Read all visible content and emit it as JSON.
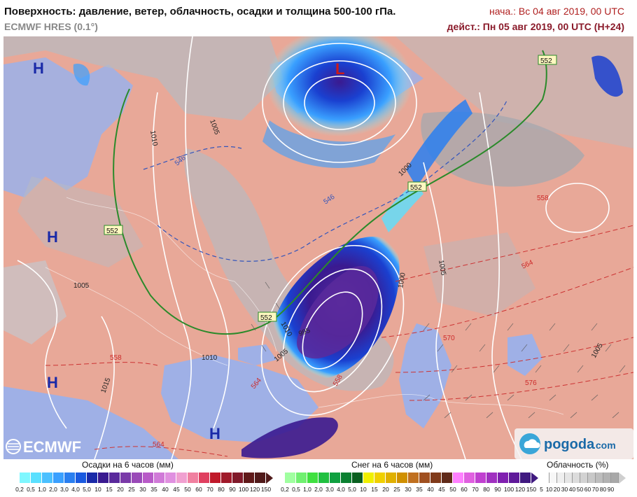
{
  "header": {
    "title": "Поверхность: давление, ветер, облачность, осадки и толщина 500-100 гПа.",
    "model": "ECMWF HRES (0.1°)",
    "init": "нача.: Вс 04 авг 2019, 00 UTC",
    "valid": "дейст.: Пн 05 авг 2019, 00 UTC (H+24)"
  },
  "map": {
    "pressure_centers": [
      {
        "label": "H",
        "kind": "high"
      },
      {
        "label": "H",
        "kind": "high"
      },
      {
        "label": "H",
        "kind": "high"
      },
      {
        "label": "H",
        "kind": "high"
      },
      {
        "label": "L",
        "kind": "low"
      }
    ],
    "isobar_labels": [
      "1010",
      "1005",
      "1000",
      "1005",
      "1000",
      "1005",
      "1010",
      "1015",
      "1005",
      "1010",
      "995",
      "1005"
    ],
    "thickness_labels_552": [
      "552",
      "552",
      "552",
      "552"
    ],
    "thickness_labels_546": [
      "546",
      "546"
    ],
    "thickness_labels_red": [
      "558",
      "558",
      "564",
      "570",
      "576",
      "558",
      "564",
      "564"
    ],
    "colors": {
      "land": "#e8a898",
      "sea": "#9fb0e6",
      "cloud": "#b9b9bf",
      "line_552": "#2a8a2a",
      "line_546": "#3355bb",
      "line_red": "#cc3333"
    },
    "logos": {
      "ecmwf": "ECMWF",
      "pogoda": "pogoda",
      "pogoda_suffix": ".com"
    }
  },
  "legend": {
    "precip": {
      "title": "Осадки на 6 часов (мм)",
      "ticks": [
        "0,2",
        "0,5",
        "1,0",
        "2,0",
        "3,0",
        "4,0",
        "5,0",
        "10",
        "15",
        "20",
        "25",
        "30",
        "35",
        "40",
        "45",
        "50",
        "60",
        "70",
        "80",
        "90",
        "100",
        "120",
        "150"
      ],
      "colors": [
        "#7ff7ff",
        "#5ae0ff",
        "#4ac0ff",
        "#3aa0ff",
        "#2a7ff0",
        "#1a5ae0",
        "#1a2aa8",
        "#3a1a90",
        "#5a2a9c",
        "#7a3aa8",
        "#9a4ab8",
        "#b85ac8",
        "#d07ad8",
        "#e090e0",
        "#f0a0d0",
        "#f080a0",
        "#e04060",
        "#c01a2a",
        "#a01a2a",
        "#801a2a",
        "#601a1a",
        "#501a1a"
      ]
    },
    "snow": {
      "title": "Снег на 6 часов (мм)",
      "ticks": [
        "0,2",
        "0,5",
        "1,0",
        "2,0",
        "3,0",
        "4,0",
        "5,0",
        "10",
        "15",
        "20",
        "25",
        "30",
        "35",
        "40",
        "45",
        "50",
        "60",
        "70",
        "80",
        "90",
        "100",
        "120",
        "150"
      ],
      "colors": [
        "#a0ffa0",
        "#70f070",
        "#40e040",
        "#20c040",
        "#10a040",
        "#0a8030",
        "#0a6020",
        "#f0f000",
        "#f0d000",
        "#e0b000",
        "#d09000",
        "#c07020",
        "#a05020",
        "#803a1a",
        "#602a1a",
        "#ff80ff",
        "#e060e0",
        "#c040d0",
        "#a030c0",
        "#8020b0",
        "#601a9a",
        "#401a80"
      ]
    },
    "cloud": {
      "title": "Облачность (%)",
      "ticks": [
        "5",
        "10",
        "20",
        "30",
        "40",
        "50",
        "60",
        "70",
        "80",
        "90"
      ],
      "colors": [
        "#ffffff",
        "#f7f7f7",
        "#efefef",
        "#e6e6e6",
        "#dcdcdc",
        "#d2d2d2",
        "#c8c8c8",
        "#bdbdbd",
        "#b2b2b2",
        "#a8a8a8"
      ]
    }
  }
}
